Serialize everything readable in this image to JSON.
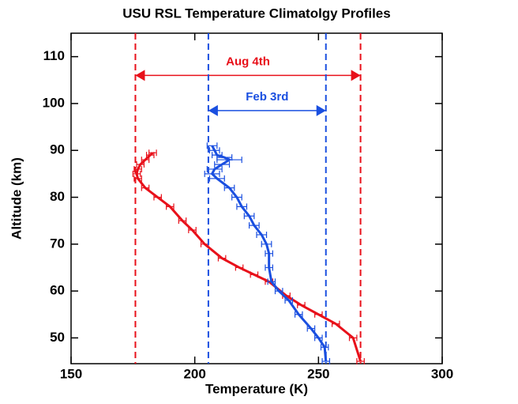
{
  "chart_data": {
    "type": "profile",
    "title": "USU RSL Temperature Climatolgy Profiles",
    "x_label": "Temperature (K)",
    "y_label": "Altitude (km)",
    "xlim": [
      150,
      300
    ],
    "xticks": [
      150,
      200,
      250,
      300
    ],
    "ylim": [
      44.5,
      115
    ],
    "yticks": [
      50,
      60,
      70,
      80,
      90,
      100,
      110
    ],
    "series": [
      {
        "color": "#e8101a",
        "x": [
          267,
          264,
          257,
          250,
          243,
          237,
          230,
          224,
          218,
          211,
          204,
          199,
          195,
          190,
          185,
          180,
          177,
          176.5,
          177,
          178,
          180,
          182,
          183
        ],
        "y": [
          45,
          50,
          53,
          55,
          57,
          59,
          62,
          63.5,
          65,
          67,
          70,
          73,
          75,
          78,
          80,
          82,
          84,
          85,
          86,
          87,
          88,
          89,
          89.5
        ],
        "xerr": [
          1.5,
          1.5,
          1.5,
          1.5,
          1.5,
          1.5,
          1.5,
          1.5,
          1.5,
          1.5,
          1.5,
          1.5,
          1.5,
          1.5,
          1.5,
          1.5,
          1.5,
          1.5,
          1.5,
          1.5,
          1.5,
          1.5,
          1.5
        ]
      },
      {
        "color": "#1a4fe0",
        "x": [
          253,
          252.5,
          250,
          247,
          242,
          238,
          234,
          231,
          230,
          230,
          229,
          227,
          224,
          222,
          219,
          217,
          214,
          209,
          207,
          208,
          211,
          214,
          212,
          209,
          208,
          207
        ],
        "y": [
          45,
          48,
          50,
          52,
          55,
          58,
          60,
          62,
          65,
          68,
          70,
          72,
          74,
          76,
          78,
          80,
          82,
          84,
          85,
          86,
          87,
          88,
          88.5,
          89,
          90,
          91
        ],
        "xerr": [
          1.5,
          1.5,
          1.5,
          1.5,
          1.5,
          1.5,
          1.5,
          1.5,
          1.5,
          1.5,
          2,
          2,
          2,
          2,
          2,
          2,
          2,
          3,
          3,
          3,
          3,
          5,
          3,
          2,
          2,
          2
        ]
      }
    ],
    "annotations": [
      {
        "text": "Aug 4th",
        "x1": 176,
        "x2": 267,
        "y": 106,
        "color": "#e8101a"
      },
      {
        "text": "Feb 3rd",
        "x1": 205.5,
        "x2": 253,
        "y": 98.5,
        "color": "#1a4fe0"
      }
    ]
  }
}
